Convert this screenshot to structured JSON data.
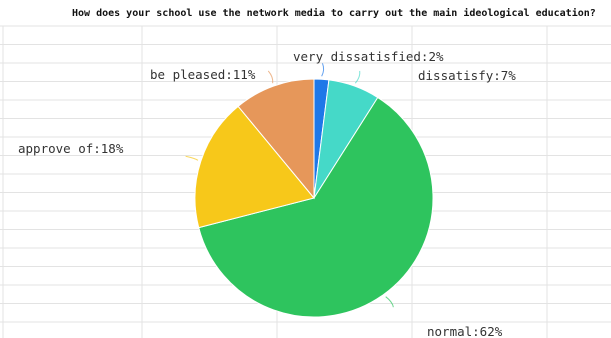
{
  "chart_data": {
    "type": "pie",
    "title": "How does your school use the network media to carry out the main ideological education?",
    "legend": "none",
    "slices": [
      {
        "label": "very dissatisfied",
        "value": 2,
        "text": "very dissatisfied:2%",
        "color": "#1e78e8"
      },
      {
        "label": "dissatisfy",
        "value": 7,
        "text": "dissatisfy:7%",
        "color": "#45d9c8"
      },
      {
        "label": "normal",
        "value": 62,
        "text": "normal:62%",
        "color": "#2ec45e"
      },
      {
        "label": "approve of",
        "value": 18,
        "text": "approve of:18%",
        "color": "#f7c81a"
      },
      {
        "label": "be pleased",
        "value": 11,
        "text": "be pleased:11%",
        "color": "#e6975a"
      }
    ]
  }
}
